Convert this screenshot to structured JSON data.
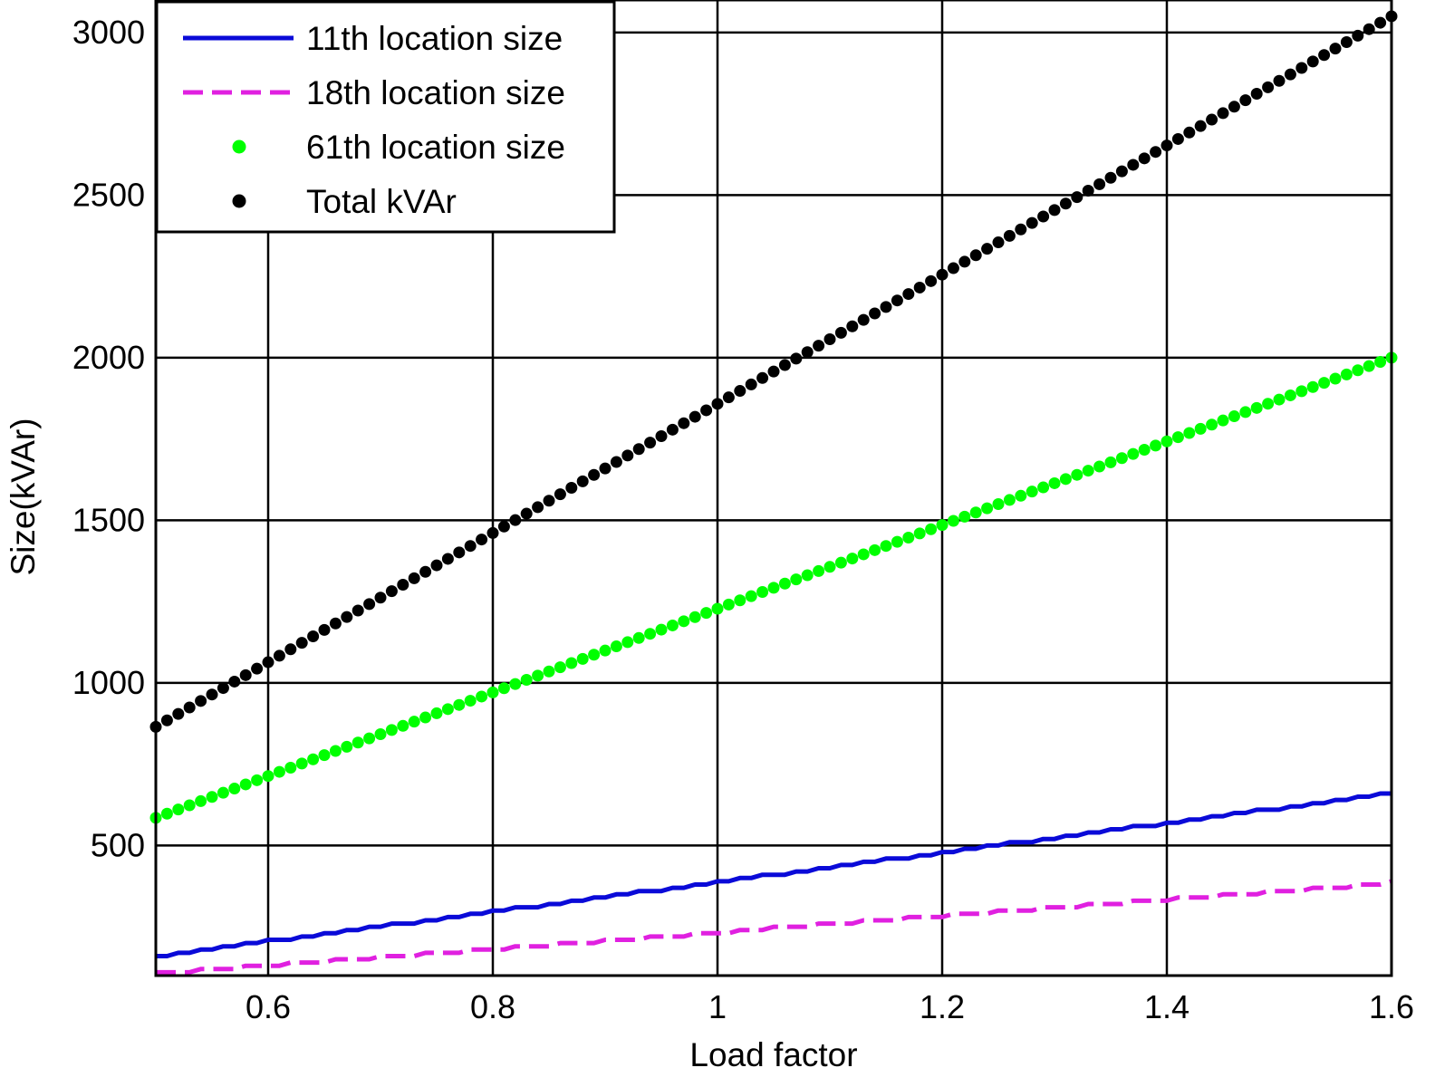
{
  "chart_data": {
    "type": "line",
    "xlabel": "Load factor",
    "ylabel": "Size(kVAr)",
    "xlim": [
      0.5,
      1.6
    ],
    "ylim": [
      100,
      3100
    ],
    "x_ticks": [
      0.6,
      0.8,
      1,
      1.2,
      1.4,
      1.6
    ],
    "x_tick_labels": [
      "0.6",
      "0.8",
      "1",
      "1.2",
      "1.4",
      "1.6"
    ],
    "y_ticks": [
      500,
      1000,
      1500,
      2000,
      2500,
      3000
    ],
    "y_tick_labels": [
      "500",
      "1000",
      "1500",
      "2000",
      "2500",
      "3000"
    ],
    "grid": true,
    "legend_position": "top-left",
    "x_range": {
      "start": 0.5,
      "end": 1.6,
      "step": 0.01
    },
    "series": [
      {
        "name": "11th location size",
        "style": "solid-line",
        "color": "#0a0ad8",
        "start": 160,
        "end": 660
      },
      {
        "name": "18th location size",
        "style": "dashed-line",
        "color": "#e020e0",
        "start": 105,
        "end": 385
      },
      {
        "name": "61th location size",
        "style": "dots",
        "color": "#00ff00",
        "start": 585,
        "end": 2000
      },
      {
        "name": "Total kVAr",
        "style": "dots",
        "color": "#000000",
        "start": 865,
        "end": 3050
      }
    ]
  }
}
